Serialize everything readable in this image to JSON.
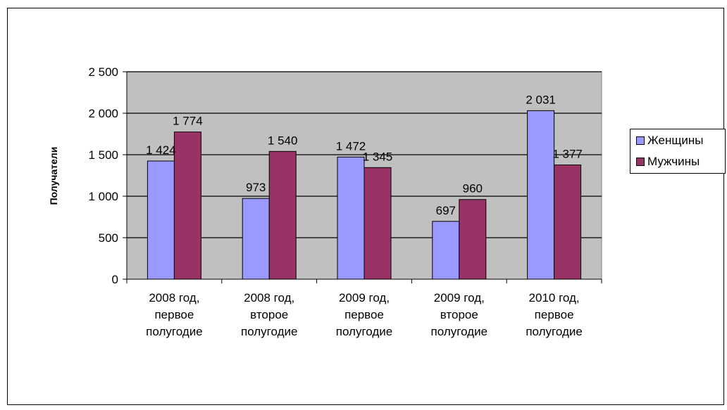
{
  "chart_data": {
    "type": "bar",
    "title": "",
    "xlabel": "",
    "ylabel": "Получатели",
    "ylim": [
      0,
      2500
    ],
    "yticks": [
      0,
      500,
      1000,
      1500,
      2000,
      2500
    ],
    "ytick_labels": [
      "0",
      "500",
      "1 000",
      "1 500",
      "2 000",
      "2 500"
    ],
    "categories": [
      [
        "2008 год,",
        "первое",
        "полугодие"
      ],
      [
        "2008 год,",
        "второе",
        "полугодие"
      ],
      [
        "2009 год,",
        "первое",
        "полугодие"
      ],
      [
        "2009 год,",
        "второе",
        "полугодие"
      ],
      [
        "2010 год,",
        "первое",
        "полугодие"
      ]
    ],
    "series": [
      {
        "name": "Женщины",
        "color": "#9999ff",
        "values": [
          1424,
          973,
          1472,
          697,
          2031
        ],
        "value_labels": [
          "1 424",
          "973",
          "1 472",
          "697",
          "2 031"
        ]
      },
      {
        "name": "Мужчины",
        "color": "#993366",
        "values": [
          1774,
          1540,
          1345,
          960,
          1377
        ],
        "value_labels": [
          "1 774",
          "1 540",
          "1 345",
          "960",
          "1 377"
        ]
      }
    ],
    "plot_background": "#c0c0c0",
    "grid": true,
    "legend_position": "right"
  }
}
